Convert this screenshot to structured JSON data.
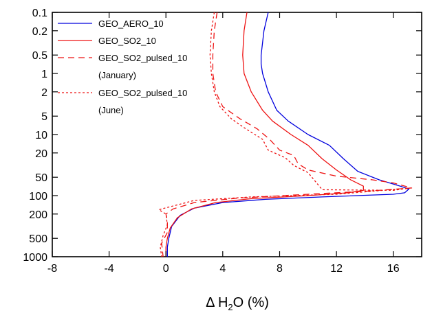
{
  "chart_data": {
    "type": "line",
    "xlabel_prefix": "Δ H",
    "xlabel_sub": "2",
    "xlabel_suffix": "O (%)",
    "ylabel": "",
    "xlim": [
      -8,
      18
    ],
    "ylim": [
      0.1,
      1000
    ],
    "y_scale": "log",
    "y_inverted": true,
    "grid": false,
    "legend_position": "top-left",
    "x_ticks": [
      -8,
      -4,
      0,
      4,
      8,
      12,
      16
    ],
    "x_tick_labels": [
      "-8",
      "-4",
      "0",
      "4",
      "8",
      "12",
      "16"
    ],
    "y_ticks": [
      0.1,
      0.2,
      0.5,
      1,
      2,
      5,
      10,
      20,
      50,
      100,
      200,
      500,
      1000
    ],
    "y_tick_labels": [
      "0.1",
      "0.2",
      "0.5",
      "1",
      "2",
      "5",
      "10",
      "20",
      "50",
      "100",
      "200",
      "500",
      "1000"
    ],
    "series": [
      {
        "name": "GEO_AERO_10",
        "color": "#0000dd",
        "dash": "solid",
        "points": [
          [
            7.2,
            0.1
          ],
          [
            6.9,
            0.2
          ],
          [
            6.7,
            0.5
          ],
          [
            6.7,
            0.7
          ],
          [
            6.8,
            1
          ],
          [
            7.2,
            2
          ],
          [
            7.8,
            4
          ],
          [
            8.6,
            6
          ],
          [
            10,
            10
          ],
          [
            11.5,
            15
          ],
          [
            12.5,
            25
          ],
          [
            13.5,
            40
          ],
          [
            15,
            55
          ],
          [
            16.5,
            70
          ],
          [
            17.1,
            78
          ],
          [
            16.8,
            90
          ],
          [
            16,
            95
          ],
          [
            11,
            105
          ],
          [
            7,
            115
          ],
          [
            4,
            130
          ],
          [
            2,
            160
          ],
          [
            1,
            210
          ],
          [
            0.4,
            320
          ],
          [
            0.2,
            500
          ],
          [
            0.1,
            700
          ],
          [
            0.1,
            1000
          ]
        ]
      },
      {
        "name": "GEO_SO2_10",
        "color": "#ee1111",
        "dash": "solid",
        "points": [
          [
            5.7,
            0.1
          ],
          [
            5.5,
            0.2
          ],
          [
            5.4,
            0.5
          ],
          [
            5.5,
            1
          ],
          [
            6,
            2
          ],
          [
            6.8,
            4
          ],
          [
            7.5,
            6
          ],
          [
            8.8,
            10
          ],
          [
            10,
            15
          ],
          [
            11,
            25
          ],
          [
            12,
            38
          ],
          [
            13,
            55
          ],
          [
            13.9,
            70
          ],
          [
            13.9,
            82
          ],
          [
            12.8,
            90
          ],
          [
            10,
            100
          ],
          [
            6,
            112
          ],
          [
            3.5,
            130
          ],
          [
            1.8,
            165
          ],
          [
            0.8,
            230
          ],
          [
            0.3,
            340
          ],
          [
            0.1,
            500
          ],
          [
            0,
            700
          ],
          [
            0,
            1000
          ]
        ]
      },
      {
        "name": "GEO_SO2_pulsed_10",
        "label2": "(January)",
        "color": "#ee1111",
        "dash": "9,6",
        "points": [
          [
            3.6,
            0.1
          ],
          [
            3.4,
            0.2
          ],
          [
            3.3,
            0.5
          ],
          [
            3.3,
            1
          ],
          [
            3.5,
            2
          ],
          [
            4,
            3.5
          ],
          [
            5.2,
            5.5
          ],
          [
            6.4,
            8
          ],
          [
            7.3,
            12
          ],
          [
            8,
            18
          ],
          [
            9,
            22
          ],
          [
            9.3,
            30
          ],
          [
            10,
            38
          ],
          [
            12,
            48
          ],
          [
            14.5,
            55
          ],
          [
            16,
            62
          ],
          [
            17.3,
            75
          ],
          [
            14,
            85
          ],
          [
            10,
            95
          ],
          [
            5,
            110
          ],
          [
            2,
            130
          ],
          [
            0.5,
            165
          ],
          [
            0,
            200
          ],
          [
            0.1,
            260
          ],
          [
            0.1,
            400
          ],
          [
            -0.3,
            600
          ],
          [
            -0.2,
            1000
          ]
        ]
      },
      {
        "name": "GEO_SO2_pulsed_10",
        "label2": "(June)",
        "color": "#ee1111",
        "dash": "3,3",
        "points": [
          [
            3.4,
            0.1
          ],
          [
            3.2,
            0.2
          ],
          [
            3.1,
            0.5
          ],
          [
            3.2,
            1
          ],
          [
            3.4,
            2
          ],
          [
            3.8,
            3.5
          ],
          [
            4.6,
            5.5
          ],
          [
            5.6,
            8
          ],
          [
            6.8,
            12
          ],
          [
            7.2,
            18
          ],
          [
            8.4,
            24
          ],
          [
            9,
            32
          ],
          [
            10,
            42
          ],
          [
            10.5,
            58
          ],
          [
            11,
            80
          ],
          [
            16,
            82
          ],
          [
            17.2,
            75
          ],
          [
            12,
            95
          ],
          [
            6,
            105
          ],
          [
            2,
            120
          ],
          [
            -0.5,
            170
          ],
          [
            0,
            200
          ],
          [
            0.1,
            300
          ],
          [
            -0.2,
            450
          ],
          [
            -0.4,
            700
          ],
          [
            -0.3,
            1000
          ]
        ]
      }
    ]
  }
}
